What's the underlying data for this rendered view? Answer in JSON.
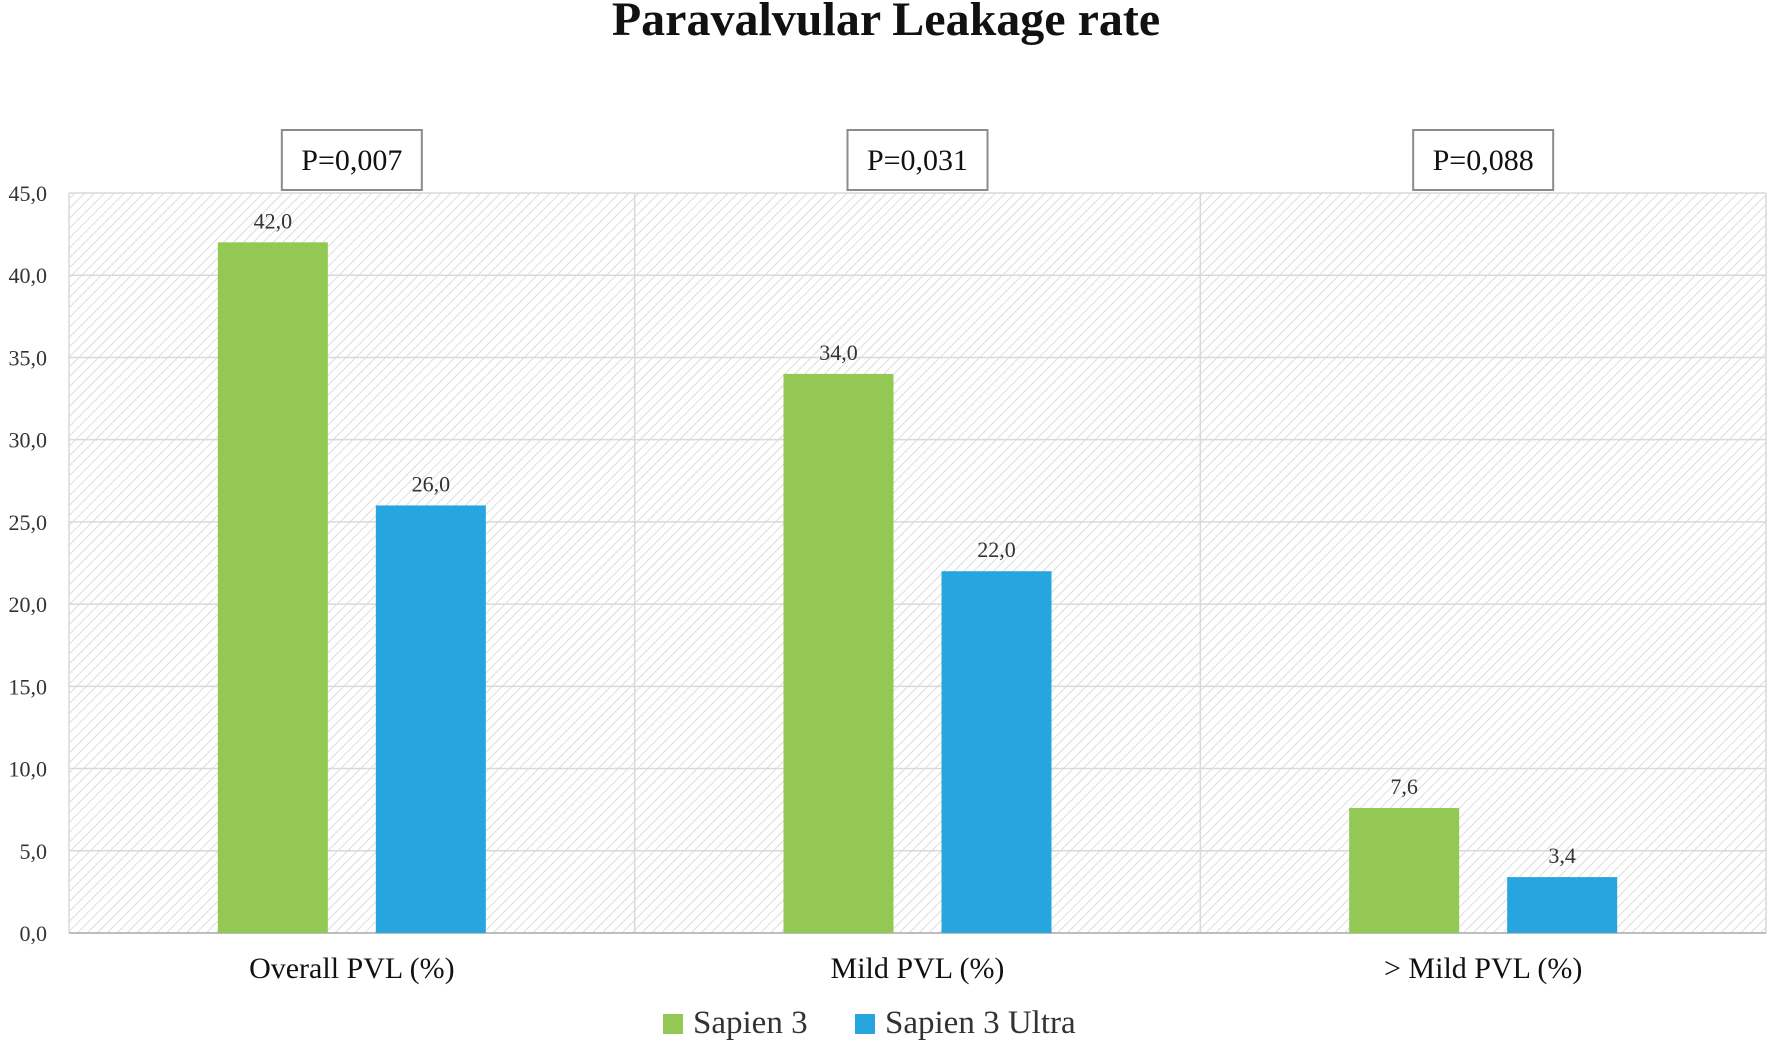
{
  "chart_data": {
    "type": "bar",
    "title": "Paravalvular Leakage rate",
    "categories": [
      "Overall PVL (%)",
      "Mild PVL (%)",
      "> Mild PVL (%)"
    ],
    "series": [
      {
        "name": "Sapien 3",
        "color": "#92c853",
        "values": [
          42.0,
          34.0,
          7.6
        ],
        "labels": [
          "42,0",
          "34,0",
          "7,6"
        ]
      },
      {
        "name": "Sapien 3 Ultra",
        "color": "#27a5df",
        "values": [
          26.0,
          22.0,
          3.4
        ],
        "labels": [
          "26,0",
          "22,0",
          "3,4"
        ]
      }
    ],
    "p_values": [
      "P=0,007",
      "P=0,031",
      "P=0,088"
    ],
    "ylim": [
      0,
      45
    ],
    "yticks": [
      0,
      5,
      10,
      15,
      20,
      25,
      30,
      35,
      40,
      45
    ],
    "ytick_labels": [
      "0,0",
      "5,0",
      "10,0",
      "15,0",
      "20,0",
      "25,0",
      "30,0",
      "35,0",
      "40,0",
      "45,0"
    ],
    "xlabel": "",
    "ylabel": "",
    "grid": true,
    "legend_position": "bottom"
  }
}
